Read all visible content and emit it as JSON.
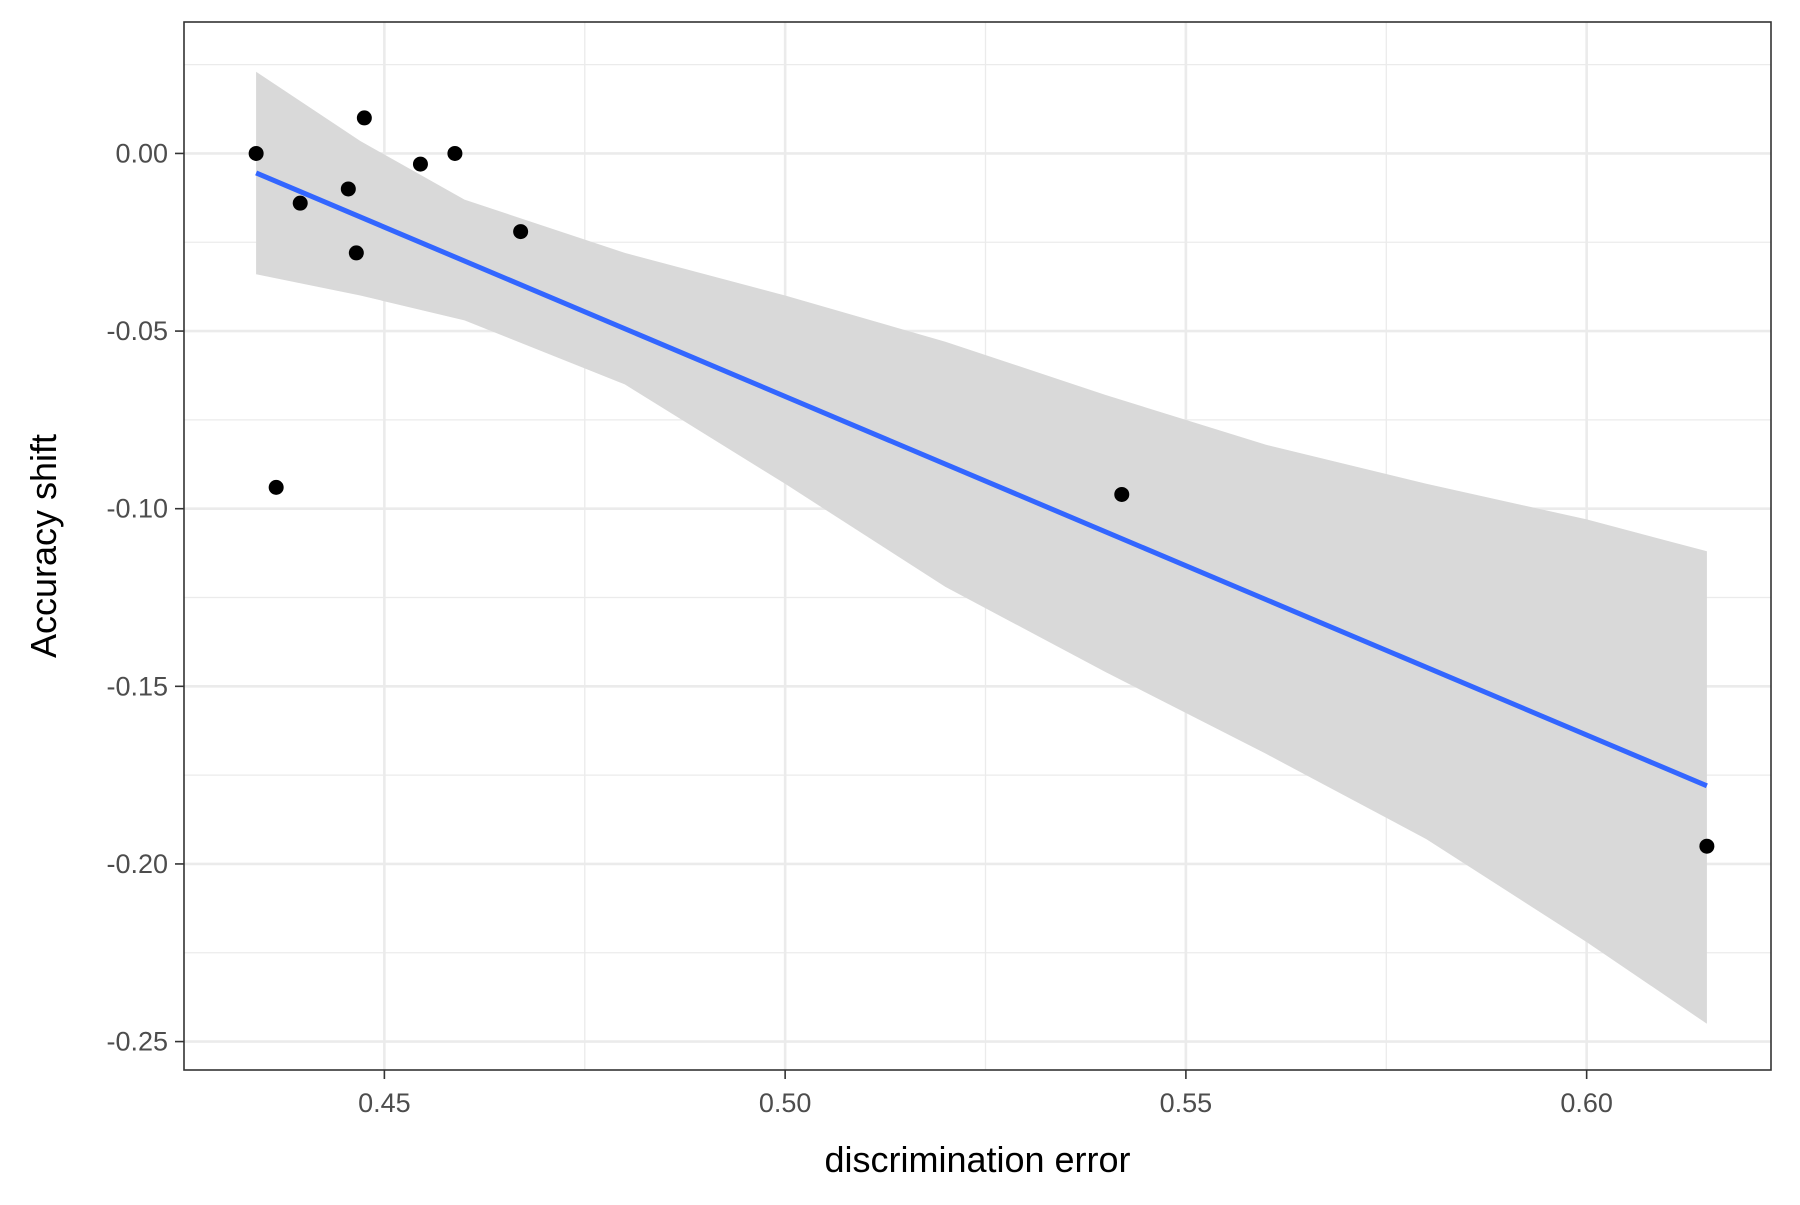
{
  "chart_data": {
    "type": "scatter",
    "xlabel": "discrimination error",
    "ylabel": "Accuracy shift",
    "xlim": [
      0.425,
      0.623
    ],
    "ylim": [
      -0.258,
      0.037
    ],
    "x_ticks": [
      0.45,
      0.5,
      0.55,
      0.6
    ],
    "x_tick_labels": [
      "0.45",
      "0.50",
      "0.55",
      "0.60"
    ],
    "x_minor_ticks": [
      0.475,
      0.525,
      0.575
    ],
    "y_ticks": [
      0.0,
      -0.05,
      -0.1,
      -0.15,
      -0.2,
      -0.25
    ],
    "y_tick_labels": [
      "0.00",
      "-0.05",
      "-0.10",
      "-0.15",
      "-0.20",
      "-0.25"
    ],
    "y_minor_ticks": [
      0.025,
      -0.025,
      -0.075,
      -0.125,
      -0.175,
      -0.225
    ],
    "grid": true,
    "points": {
      "x": [
        0.434,
        0.4365,
        0.4395,
        0.4455,
        0.4465,
        0.4475,
        0.4545,
        0.4588,
        0.467,
        0.542,
        0.615
      ],
      "y": [
        0.0,
        -0.094,
        -0.014,
        -0.01,
        -0.028,
        0.01,
        -0.003,
        0.0,
        -0.022,
        -0.096,
        -0.195
      ],
      "color": "#000000"
    },
    "fit_line": {
      "x": [
        0.434,
        0.615
      ],
      "y": [
        -0.0055,
        -0.178
      ],
      "color": "#3366ff"
    },
    "confidence_band": {
      "x": [
        0.434,
        0.447,
        0.46,
        0.48,
        0.5,
        0.52,
        0.54,
        0.56,
        0.58,
        0.6,
        0.615
      ],
      "upper": [
        0.023,
        0.0035,
        -0.013,
        -0.028,
        -0.04,
        -0.053,
        -0.068,
        -0.082,
        -0.093,
        -0.103,
        -0.112
      ],
      "lower": [
        -0.034,
        -0.04,
        -0.047,
        -0.065,
        -0.093,
        -0.122,
        -0.146,
        -0.169,
        -0.193,
        -0.222,
        -0.245
      ],
      "color": "#d9d9d9"
    }
  }
}
